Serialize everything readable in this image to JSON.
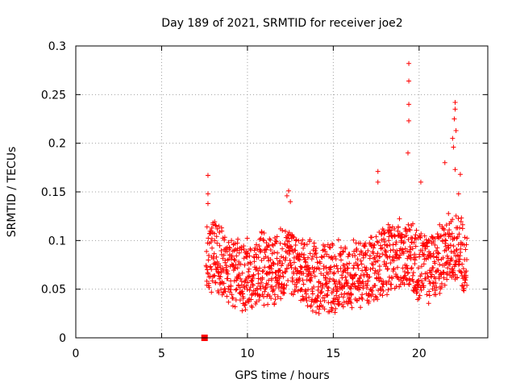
{
  "chart_data": {
    "type": "scatter",
    "title": "Day 189 of 2021, SRMTID for receiver joe2",
    "xlabel": "GPS time / hours",
    "ylabel": "SRMTID / TECUs",
    "xlim": [
      0,
      24
    ],
    "ylim": [
      0,
      0.3
    ],
    "xticks": [
      0,
      5,
      10,
      15,
      20
    ],
    "xtick_labels": [
      "0",
      "5",
      "10",
      "15",
      "20"
    ],
    "yticks": [
      0,
      0.05,
      0.1,
      0.15,
      0.2,
      0.25,
      0.3
    ],
    "ytick_labels": [
      "0",
      "0.05",
      "0.1",
      "0.15",
      "0.2",
      "0.25",
      "0.3"
    ],
    "grid": true,
    "marker": "plus",
    "color": "#ff0000",
    "marker_square": {
      "x": 7.5,
      "y": 0.0
    },
    "peaks": [
      {
        "x": 7.7,
        "y": 0.167
      },
      {
        "x": 7.7,
        "y": 0.148
      },
      {
        "x": 7.7,
        "y": 0.138
      },
      {
        "x": 12.4,
        "y": 0.151
      },
      {
        "x": 12.5,
        "y": 0.14
      },
      {
        "x": 12.3,
        "y": 0.146
      },
      {
        "x": 17.6,
        "y": 0.171
      },
      {
        "x": 17.6,
        "y": 0.16
      },
      {
        "x": 19.4,
        "y": 0.282
      },
      {
        "x": 19.4,
        "y": 0.264
      },
      {
        "x": 19.4,
        "y": 0.24
      },
      {
        "x": 19.4,
        "y": 0.223
      },
      {
        "x": 19.35,
        "y": 0.19
      },
      {
        "x": 20.1,
        "y": 0.16
      },
      {
        "x": 21.5,
        "y": 0.18
      },
      {
        "x": 22.1,
        "y": 0.242
      },
      {
        "x": 22.1,
        "y": 0.235
      },
      {
        "x": 22.05,
        "y": 0.225
      },
      {
        "x": 22.15,
        "y": 0.213
      },
      {
        "x": 21.95,
        "y": 0.205
      },
      {
        "x": 22.0,
        "y": 0.196
      },
      {
        "x": 22.1,
        "y": 0.173
      },
      {
        "x": 22.4,
        "y": 0.168
      },
      {
        "x": 22.3,
        "y": 0.148
      }
    ],
    "baseline": [
      {
        "x": 7.6,
        "y": 0.08
      },
      {
        "x": 8.0,
        "y": 0.085
      },
      {
        "x": 8.5,
        "y": 0.078
      },
      {
        "x": 9.0,
        "y": 0.068
      },
      {
        "x": 9.5,
        "y": 0.065
      },
      {
        "x": 10.0,
        "y": 0.064
      },
      {
        "x": 10.5,
        "y": 0.068
      },
      {
        "x": 11.0,
        "y": 0.072
      },
      {
        "x": 11.5,
        "y": 0.07
      },
      {
        "x": 12.0,
        "y": 0.075
      },
      {
        "x": 12.5,
        "y": 0.078
      },
      {
        "x": 13.0,
        "y": 0.072
      },
      {
        "x": 13.5,
        "y": 0.066
      },
      {
        "x": 14.0,
        "y": 0.06
      },
      {
        "x": 14.5,
        "y": 0.062
      },
      {
        "x": 15.0,
        "y": 0.063
      },
      {
        "x": 15.5,
        "y": 0.06
      },
      {
        "x": 16.0,
        "y": 0.062
      },
      {
        "x": 16.5,
        "y": 0.064
      },
      {
        "x": 17.0,
        "y": 0.068
      },
      {
        "x": 17.5,
        "y": 0.075
      },
      {
        "x": 18.0,
        "y": 0.08
      },
      {
        "x": 18.5,
        "y": 0.085
      },
      {
        "x": 19.0,
        "y": 0.085
      },
      {
        "x": 19.5,
        "y": 0.082
      },
      {
        "x": 20.0,
        "y": 0.072
      },
      {
        "x": 20.5,
        "y": 0.07
      },
      {
        "x": 21.0,
        "y": 0.078
      },
      {
        "x": 21.5,
        "y": 0.085
      },
      {
        "x": 22.0,
        "y": 0.095
      },
      {
        "x": 22.4,
        "y": 0.09
      },
      {
        "x": 22.8,
        "y": 0.075
      }
    ]
  }
}
